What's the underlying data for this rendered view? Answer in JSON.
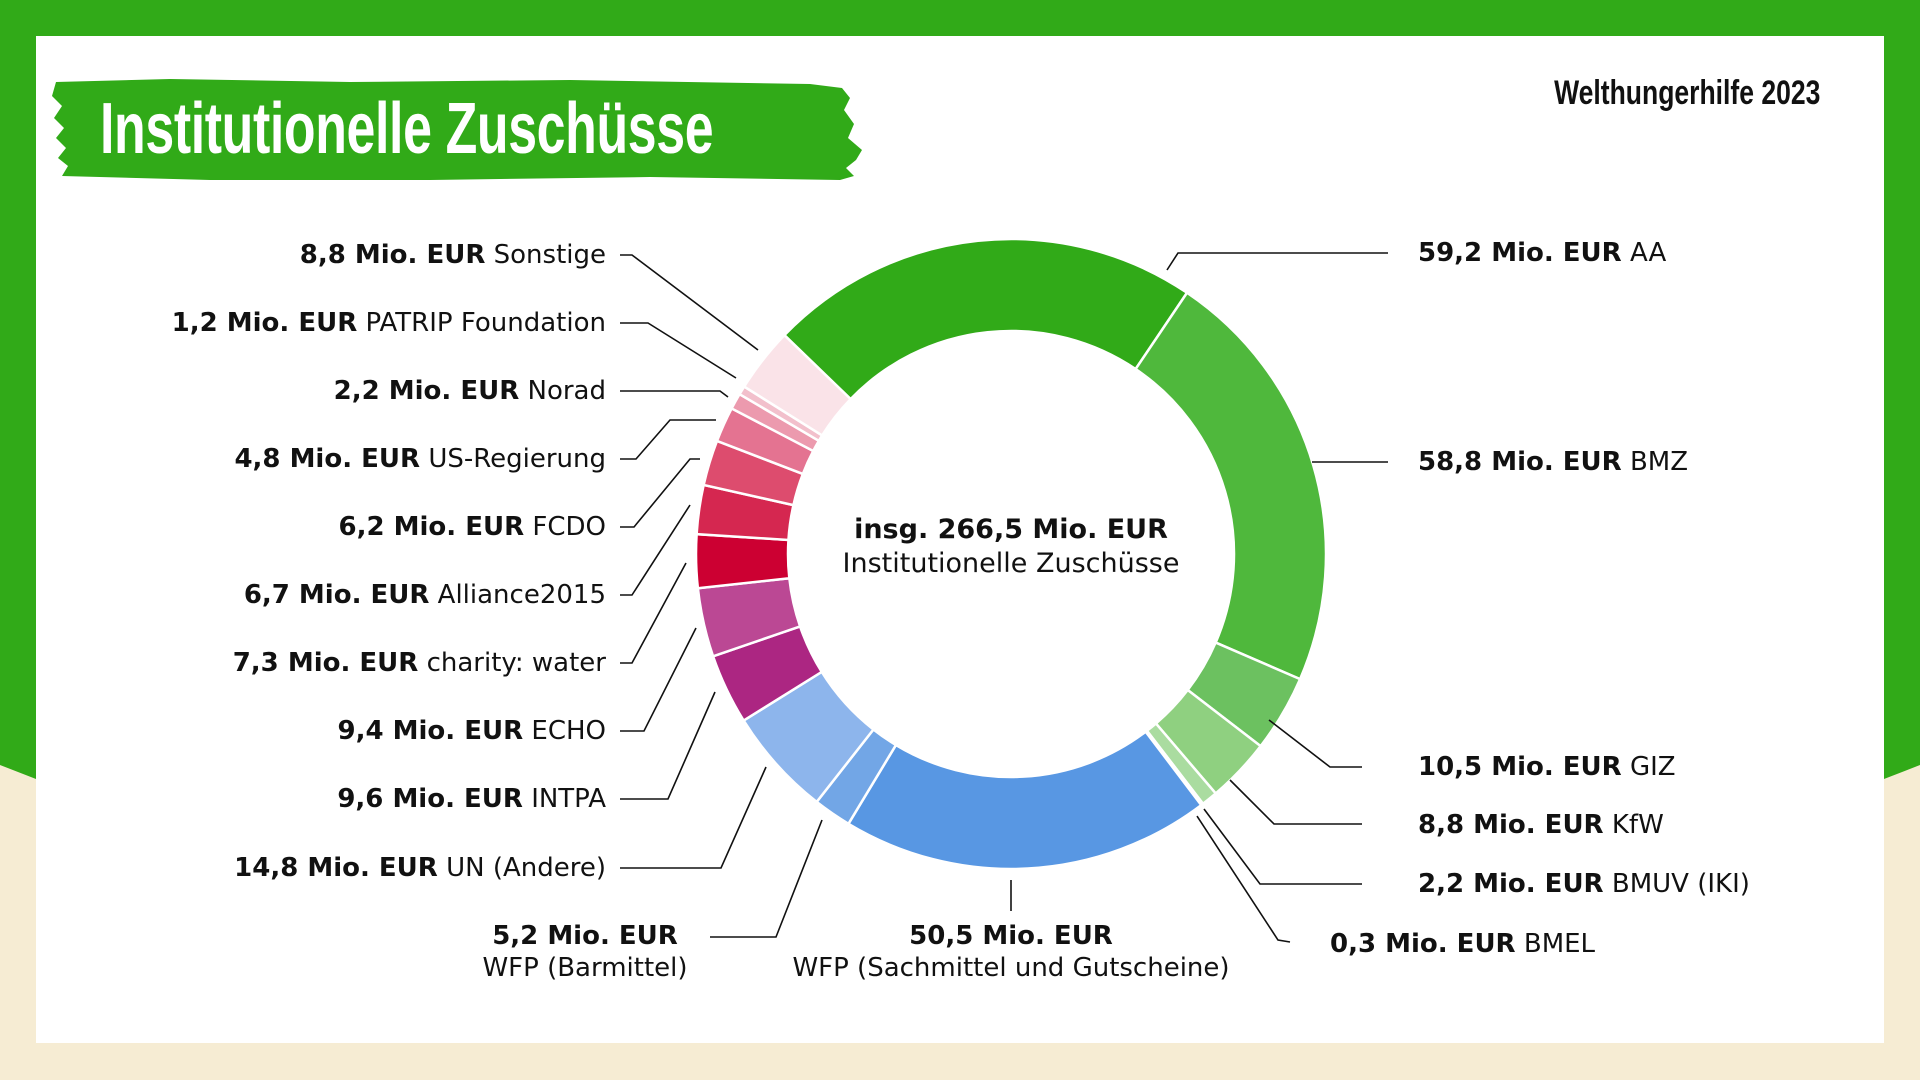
{
  "header": {
    "title": "Institutionelle Zuschüsse",
    "brand": "Welthungerhilfe 2023"
  },
  "center": {
    "total": "insg. 266,5 Mio. EUR",
    "subtitle": "Institutionelle Zuschüsse"
  },
  "colors": {
    "frame_green": "#31aa18",
    "background_cream": "#f6ecd3",
    "panel": "#ffffff"
  },
  "labels": {
    "left": [
      {
        "value": "8,8 Mio. EUR",
        "name": "Sonstige"
      },
      {
        "value": "1,2 Mio. EUR",
        "name": "PATRIP Foundation"
      },
      {
        "value": "2,2 Mio. EUR",
        "name": "Norad"
      },
      {
        "value": "4,8 Mio. EUR",
        "name": "US-Regierung"
      },
      {
        "value": "6,2 Mio. EUR",
        "name": "FCDO"
      },
      {
        "value": "6,7 Mio. EUR",
        "name": "Alliance2015"
      },
      {
        "value": "7,3 Mio. EUR",
        "name": "charity: water"
      },
      {
        "value": "9,4 Mio. EUR",
        "name": "ECHO"
      },
      {
        "value": "9,6 Mio. EUR",
        "name": "INTPA"
      },
      {
        "value": "14,8 Mio. EUR",
        "name": "UN (Andere)"
      }
    ],
    "right": [
      {
        "value": "59,2 Mio. EUR",
        "name": "AA"
      },
      {
        "value": "58,8 Mio. EUR",
        "name": "BMZ"
      },
      {
        "value": "10,5 Mio. EUR",
        "name": "GIZ"
      },
      {
        "value": "8,8 Mio. EUR",
        "name": "KfW"
      },
      {
        "value": "2,2 Mio. EUR",
        "name": "BMUV (IKI)"
      },
      {
        "value": "0,3 Mio. EUR",
        "name": "BMEL"
      }
    ],
    "bottom": [
      {
        "value": "5,2 Mio. EUR",
        "name": "WFP (Barmittel)"
      },
      {
        "value": "50,5 Mio. EUR",
        "name": "WFP (Sachmittel und Gutscheine)"
      }
    ]
  },
  "chart_data": {
    "type": "pie",
    "subtype": "donut",
    "title": "Institutionelle Zuschüsse",
    "subtitle": "Welthungerhilfe 2023",
    "unit": "Mio. EUR",
    "total": 266.5,
    "center_label": "insg. 266,5 Mio. EUR Institutionelle Zuschüsse",
    "start_angle_deg": -46,
    "direction": "clockwise",
    "categories": [
      "AA",
      "BMZ",
      "GIZ",
      "KfW",
      "BMUV (IKI)",
      "BMEL",
      "WFP (Sachmittel und Gutscheine)",
      "WFP (Barmittel)",
      "UN (Andere)",
      "INTPA",
      "ECHO",
      "charity: water",
      "Alliance2015",
      "FCDO",
      "US-Regierung",
      "Norad",
      "PATRIP Foundation",
      "Sonstige"
    ],
    "values": [
      59.2,
      58.8,
      10.5,
      8.8,
      2.2,
      0.3,
      50.5,
      5.2,
      14.8,
      9.6,
      9.4,
      7.3,
      6.7,
      6.2,
      4.8,
      2.2,
      1.2,
      8.8
    ],
    "colors": [
      "#31aa18",
      "#4fb83c",
      "#6cc160",
      "#8fd080",
      "#aadca0",
      "#c6e8be",
      "#5897e3",
      "#72a6e6",
      "#8db5ec",
      "#ac2682",
      "#bb4894",
      "#cc0032",
      "#d52750",
      "#dd4c6e",
      "#e47391",
      "#ec9aae",
      "#f2c0cc",
      "#fae3e8"
    ],
    "legend_position": "callout labels around donut"
  }
}
